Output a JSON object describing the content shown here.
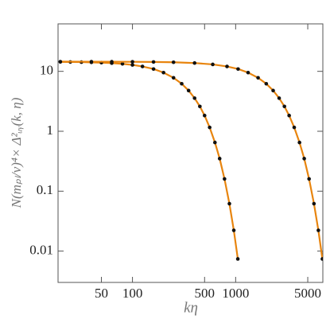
{
  "chart_data": {
    "type": "line",
    "xlabel": "kη",
    "ylabel": "N(mₚₗ/v)⁴× Δ²ᵤᵧ(k, η)",
    "xscale": "log",
    "yscale": "log",
    "xlim": [
      19,
      7000
    ],
    "ylim": [
      0.003,
      62
    ],
    "xticks": [
      50,
      100,
      500,
      1000,
      5000
    ],
    "yticks": [
      10,
      1,
      0.1,
      0.01
    ],
    "line_color": "#e8850f",
    "marker_color": "#111111",
    "series": [
      {
        "x": [
          20,
          25,
          32,
          40,
          50,
          63,
          80,
          100,
          125,
          160,
          200,
          250,
          300,
          350,
          400,
          450,
          500,
          560,
          630,
          700,
          780,
          870,
          960,
          1050
        ],
        "values": [
          14.39,
          14.34,
          14.26,
          14.14,
          13.98,
          13.72,
          13.34,
          12.81,
          12.07,
          10.94,
          9.53,
          7.81,
          6.21,
          4.78,
          3.57,
          2.6,
          1.83,
          1.16,
          0.65,
          0.35,
          0.16,
          0.0618,
          0.0222,
          0.0074
        ]
      },
      {
        "x": [
          20,
          40,
          63,
          100,
          160,
          250,
          400,
          600,
          825,
          1056,
          1320,
          1650,
          1980,
          2310,
          2640,
          2970,
          3300,
          3696,
          4158,
          4620,
          5148,
          5742,
          6336,
          6930
        ],
        "values": [
          14.5,
          14.49,
          14.47,
          14.43,
          14.35,
          14.18,
          13.77,
          13.06,
          12.07,
          10.94,
          9.53,
          7.81,
          6.21,
          4.78,
          3.57,
          2.6,
          1.83,
          1.16,
          0.65,
          0.35,
          0.16,
          0.0618,
          0.0222,
          0.0074
        ]
      }
    ]
  }
}
